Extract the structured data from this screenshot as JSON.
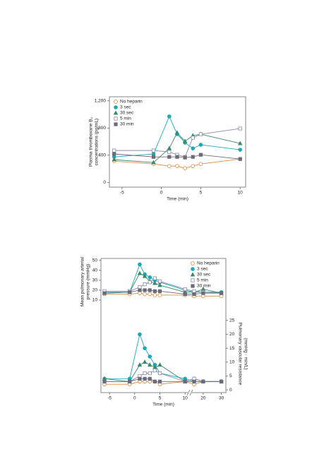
{
  "chart_data": [
    {
      "type": "line",
      "ylabel": [
        "Plasma thromboxane B₂",
        "concentrations (pg/mL)"
      ],
      "xlabel": "Time (min)",
      "x": [
        -6,
        -1,
        1,
        2,
        3,
        4,
        5,
        10
      ],
      "xlim": [
        -6.6,
        10.7
      ],
      "xticks": [
        -5,
        0,
        5,
        10
      ],
      "ylim": [
        -70,
        1260
      ],
      "yticks": [
        0,
        400,
        800,
        {
          "value": 1200,
          "label": "1,200"
        }
      ],
      "legend": "upper left",
      "series": [
        {
          "name": "No heparin",
          "color": "#e08a3c",
          "marker": "circle-open",
          "values": [
            313,
            271,
            240,
            240,
            209,
            240,
            271,
            344
          ]
        },
        {
          "name": "3 sec",
          "color": "#1ba8b8",
          "marker": "circle",
          "values": [
            375,
            417,
            970,
            709,
            584,
            500,
            553,
            480
          ]
        },
        {
          "name": "30 sec",
          "color": "#3a8a6a",
          "marker": "triangle",
          "values": [
            334,
            292,
            500,
            730,
            605,
            688,
            709,
            573
          ]
        },
        {
          "name": "5 min",
          "color": "#8a8aa8",
          "marker": "square-open",
          "values": [
            469,
            469,
            448,
            406,
            375,
            657,
            709,
            792
          ]
        },
        {
          "name": "30 min",
          "color": "#6a6a7a",
          "marker": "square",
          "values": [
            417,
            375,
            375,
            375,
            365,
            375,
            406,
            344
          ]
        }
      ]
    },
    {
      "type": "line",
      "ylabel": [
        "Mean pulmonary arterial",
        "pressure (mmHg)"
      ],
      "x": [
        -6,
        -1,
        1,
        2,
        3,
        4,
        5,
        10,
        15,
        20,
        30
      ],
      "xlim": [
        -6.7,
        32.5
      ],
      "xbreak": 10,
      "ylim": [
        5,
        52
      ],
      "yticks": [
        10,
        20,
        30,
        40,
        50
      ],
      "legend": "upper right",
      "series": [
        {
          "name": "No heparin",
          "color": "#e08a3c",
          "marker": "circle-open",
          "values": [
            16,
            16,
            17,
            16,
            16,
            15,
            15,
            15,
            14,
            14,
            14
          ]
        },
        {
          "name": "3 sec",
          "color": "#1ba8b8",
          "marker": "circle",
          "values": [
            18,
            18,
            46,
            36,
            33,
            30,
            28,
            20,
            18,
            18,
            18
          ]
        },
        {
          "name": "30 sec",
          "color": "#3a8a6a",
          "marker": "triangle",
          "values": [
            17,
            18,
            37,
            34,
            29,
            27,
            25,
            18,
            18,
            21,
            17
          ]
        },
        {
          "name": "5 min",
          "color": "#8a8aa8",
          "marker": "square-open",
          "values": [
            19,
            19,
            23,
            26,
            28,
            32,
            29,
            21,
            19,
            18,
            17
          ]
        },
        {
          "name": "30 min",
          "color": "#6a6a7a",
          "marker": "square",
          "values": [
            17,
            18,
            20,
            20,
            20,
            19,
            19,
            16,
            16,
            17,
            17
          ]
        }
      ]
    },
    {
      "type": "line",
      "ylabel": [
        "Pulmonary vascular resistance",
        "(mmHg · min/L)"
      ],
      "xlabel": "Time (min)",
      "yaxis_side": "right",
      "x": [
        -6,
        -1,
        1,
        2,
        3,
        4,
        5,
        10,
        15,
        20,
        30
      ],
      "xlim": [
        -6.7,
        32.5
      ],
      "xbreak": 10,
      "xticks": [
        -5,
        0,
        5,
        10,
        20,
        30
      ],
      "ylim": [
        -1,
        27
      ],
      "yticks": [
        0,
        5,
        10,
        15,
        20,
        25
      ],
      "series": [
        {
          "color": "#e08a3c",
          "marker": "circle-open",
          "values": [
            2,
            2,
            3,
            3,
            3,
            3,
            2,
            3,
            2,
            3,
            3
          ]
        },
        {
          "color": "#1ba8b8",
          "marker": "circle",
          "values": [
            4,
            4,
            20,
            15,
            12,
            9,
            6,
            4,
            3,
            3,
            3
          ]
        },
        {
          "color": "#3a8a6a",
          "marker": "triangle",
          "values": [
            4,
            3,
            9,
            10,
            9,
            8,
            9,
            3,
            4,
            3,
            3
          ]
        },
        {
          "color": "#8a8aa8",
          "marker": "square-open",
          "values": [
            3,
            3,
            5,
            6,
            6,
            7,
            6,
            3,
            4,
            3,
            3
          ]
        },
        {
          "color": "#6a6a7a",
          "marker": "square",
          "values": [
            3,
            3,
            4,
            4,
            4,
            3,
            3,
            3,
            3,
            3,
            3
          ]
        }
      ]
    }
  ]
}
